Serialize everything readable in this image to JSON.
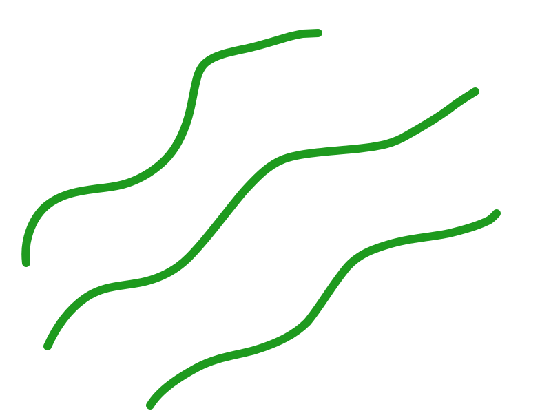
{
  "drawing": {
    "background_color": "#ffffff",
    "stroke_color": "#1e9a1e",
    "stroke_count": 3,
    "strokes": [
      {
        "name": "left-wavy-stroke"
      },
      {
        "name": "middle-wavy-stroke"
      },
      {
        "name": "right-wavy-stroke"
      }
    ]
  }
}
